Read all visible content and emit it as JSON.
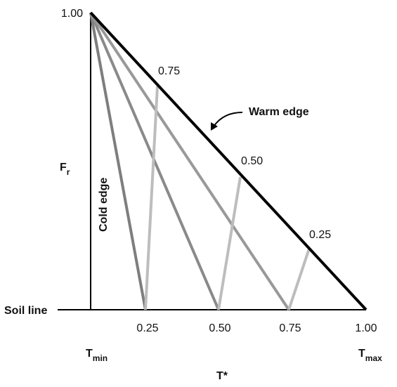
{
  "y_axis": {
    "label": "F",
    "label_sub": "r",
    "tick": "1.00"
  },
  "x_axis": {
    "ticks": [
      "0.25",
      "0.50",
      "0.75",
      "1.00"
    ],
    "min_label": "T",
    "min_sub": "min",
    "max_label": "T",
    "max_sub": "max",
    "title": "T*"
  },
  "edges": {
    "warm": "Warm edge",
    "cold": "Cold edge",
    "soil": "Soil line"
  },
  "isolines": [
    "0.75",
    "0.50",
    "0.25"
  ]
}
